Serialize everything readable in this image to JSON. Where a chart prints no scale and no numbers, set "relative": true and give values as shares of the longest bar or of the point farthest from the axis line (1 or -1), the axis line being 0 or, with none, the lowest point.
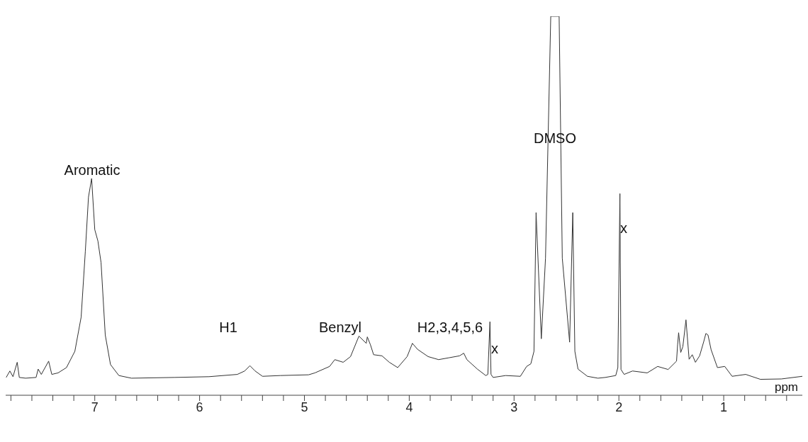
{
  "chart_data": {
    "type": "line",
    "xlabel": "ppm",
    "relative": true,
    "color": "#333333",
    "marker": "none",
    "xlim": [
      7.85,
      0.25
    ],
    "xticks": [
      {
        "value": 7.8,
        "label": null
      },
      {
        "value": 7.6,
        "label": null
      },
      {
        "value": 7.4,
        "label": null
      },
      {
        "value": 7.2,
        "label": null
      },
      7,
      {
        "value": 6.8,
        "label": null
      },
      {
        "value": 6.6,
        "label": null
      },
      {
        "value": 6.4,
        "label": null
      },
      {
        "value": 6.2,
        "label": null
      },
      6,
      {
        "value": 5.8,
        "label": null
      },
      {
        "value": 5.6,
        "label": null
      },
      {
        "value": 5.4,
        "label": null
      },
      {
        "value": 5.2,
        "label": null
      },
      5,
      {
        "value": 4.8,
        "label": null
      },
      {
        "value": 4.6,
        "label": null
      },
      {
        "value": 4.4,
        "label": null
      },
      {
        "value": 4.2,
        "label": null
      },
      4,
      {
        "value": 3.8,
        "label": null
      },
      {
        "value": 3.6,
        "label": null
      },
      {
        "value": 3.4,
        "label": null
      },
      {
        "value": 3.2,
        "label": null
      },
      3,
      {
        "value": 2.8,
        "label": null
      },
      {
        "value": 2.6,
        "label": null
      },
      {
        "value": 2.4,
        "label": null
      },
      {
        "value": 2.2,
        "label": null
      },
      2,
      {
        "value": 1.8,
        "label": null
      },
      {
        "value": 1.6,
        "label": null
      },
      {
        "value": 1.4,
        "label": null
      },
      {
        "value": 1.2,
        "label": null
      },
      1,
      {
        "value": 0.8,
        "label": null
      },
      {
        "value": 0.6,
        "label": null
      },
      {
        "value": 0.4,
        "label": null
      }
    ],
    "x": [
      7.845,
      7.81,
      7.78,
      7.74,
      7.72,
      7.66,
      7.56,
      7.54,
      7.51,
      7.44,
      7.41,
      7.35,
      7.27,
      7.19,
      7.13,
      7.09,
      7.06,
      7.03,
      7.0,
      6.97,
      6.94,
      6.9,
      6.85,
      6.77,
      6.65,
      6.24,
      5.91,
      5.64,
      5.57,
      5.52,
      5.47,
      5.4,
      5.23,
      4.96,
      4.9,
      4.76,
      4.71,
      4.63,
      4.56,
      4.48,
      4.41,
      4.4,
      4.37,
      4.34,
      4.26,
      4.19,
      4.11,
      4.02,
      3.97,
      3.92,
      3.82,
      3.72,
      3.62,
      3.52,
      3.48,
      3.45,
      3.35,
      3.27,
      3.25,
      3.23,
      3.22,
      3.2,
      3.08,
      2.94,
      2.88,
      2.84,
      2.81,
      2.79,
      2.74,
      2.7,
      2.65,
      2.57,
      2.54,
      2.47,
      2.44,
      2.42,
      2.39,
      2.3,
      2.2,
      2.13,
      2.03,
      2.01,
      1.99,
      1.98,
      1.95,
      1.87,
      1.73,
      1.63,
      1.53,
      1.45,
      1.44,
      1.43,
      1.41,
      1.39,
      1.36,
      1.33,
      1.3,
      1.27,
      1.23,
      1.19,
      1.17,
      1.15,
      1.12,
      1.06,
      0.99,
      0.92,
      0.79,
      0.65,
      0.45,
      0.25
    ],
    "values": [
      0.047,
      0.064,
      0.049,
      0.087,
      0.047,
      0.045,
      0.047,
      0.069,
      0.055,
      0.09,
      0.055,
      0.059,
      0.073,
      0.116,
      0.206,
      0.38,
      0.523,
      0.572,
      0.437,
      0.407,
      0.35,
      0.159,
      0.081,
      0.052,
      0.045,
      0.047,
      0.049,
      0.055,
      0.064,
      0.078,
      0.064,
      0.05,
      0.052,
      0.054,
      0.059,
      0.076,
      0.094,
      0.087,
      0.102,
      0.156,
      0.137,
      0.154,
      0.133,
      0.107,
      0.104,
      0.087,
      0.073,
      0.102,
      0.137,
      0.121,
      0.102,
      0.094,
      0.099,
      0.104,
      0.111,
      0.094,
      0.069,
      0.052,
      0.055,
      0.194,
      0.055,
      0.047,
      0.052,
      0.05,
      0.076,
      0.083,
      0.116,
      0.482,
      0.149,
      0.362,
      1,
      1,
      0.362,
      0.14,
      0.482,
      0.116,
      0.069,
      0.05,
      0.045,
      0.047,
      0.052,
      0.073,
      0.532,
      0.068,
      0.055,
      0.064,
      0.059,
      0.076,
      0.068,
      0.09,
      0.133,
      0.165,
      0.113,
      0.128,
      0.199,
      0.095,
      0.107,
      0.087,
      0.104,
      0.142,
      0.163,
      0.159,
      0.12,
      0.073,
      0.076,
      0.05,
      0.055,
      0.042,
      0.043,
      0.05
    ],
    "annotations": [
      "Aromatic",
      "H1",
      "Benzyl",
      "H2,3,4,5,6",
      "x",
      "DMSO",
      "x"
    ]
  }
}
